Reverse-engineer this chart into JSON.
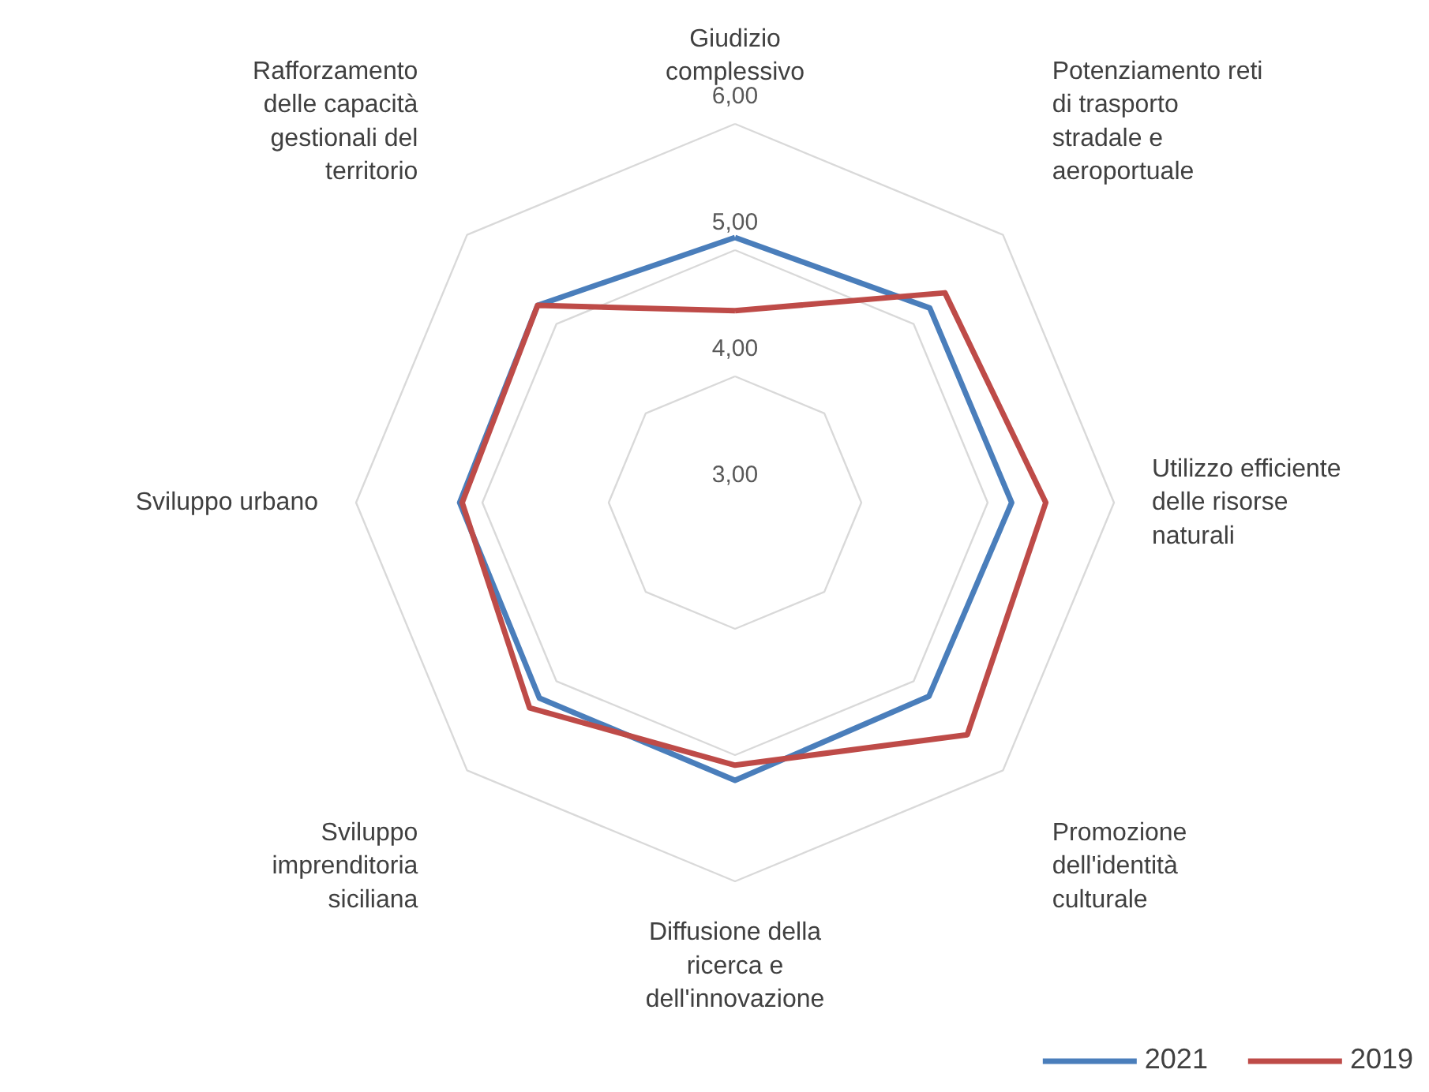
{
  "chart_data": {
    "type": "radar",
    "categories": [
      "Giudizio\ncomplessivo",
      "Potenziamento reti\ndi trasporto\nstradale e\naeroportuale",
      "Utilizzo efficiente\ndelle risorse\nnaturali",
      "Promozione\ndell'identità\nculturale",
      "Diffusione della\nricerca e\ndell'innovazione",
      "Sviluppo\nimprenditoria\nsiciliana",
      "Sviluppo urbano",
      "Rafforzamento\ndelle capacità\ngestionali del\nterritorio"
    ],
    "series": [
      {
        "name": "2021",
        "color": "#4a7ebb",
        "values": [
          5.1,
          5.18,
          5.19,
          5.17,
          5.2,
          5.19,
          5.18,
          5.21
        ]
      },
      {
        "name": "2019",
        "color": "#be4b48",
        "values": [
          4.52,
          5.35,
          5.46,
          5.6,
          5.08,
          5.3,
          5.16,
          5.21
        ]
      }
    ],
    "ylim": [
      3,
      6
    ],
    "yticks": [
      {
        "value": 3,
        "label": "3,00"
      },
      {
        "value": 4,
        "label": "4,00"
      },
      {
        "value": 5,
        "label": "5,00"
      },
      {
        "value": 6,
        "label": "6,00"
      }
    ],
    "grid": true,
    "legend": "bottom right",
    "line_style": "solid",
    "marker": "none"
  }
}
